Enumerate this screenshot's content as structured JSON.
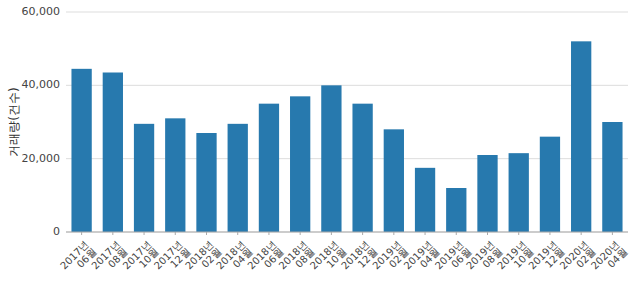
{
  "chart_data": {
    "type": "bar",
    "categories": [
      "2017년\n06월",
      "2017년\n08월",
      "2017년\n10월",
      "2017년\n12월",
      "2018년\n02월",
      "2018년\n04월",
      "2018년\n06월",
      "2018년\n08월",
      "2018년\n10월",
      "2018년\n12월",
      "2019년\n02월",
      "2019년\n04월",
      "2019년\n06월",
      "2019년\n08월",
      "2019년\n10월",
      "2019년\n12월",
      "2020년\n02월",
      "2020년\n04월"
    ],
    "values": [
      44500,
      43500,
      29500,
      31000,
      27000,
      29500,
      35000,
      37000,
      40000,
      35000,
      28000,
      17500,
      12000,
      21000,
      21500,
      26000,
      52000,
      30000
    ],
    "color": "#2779ae",
    "y_label": "거래량(건수)",
    "ylim": [
      0,
      60000
    ],
    "yticks": [
      0,
      {
        "value": 20000,
        "label": "20,000"
      },
      {
        "value": 40000,
        "label": "40,000"
      },
      {
        "value": 60000,
        "label": "60,000"
      }
    ],
    "grid": true
  }
}
